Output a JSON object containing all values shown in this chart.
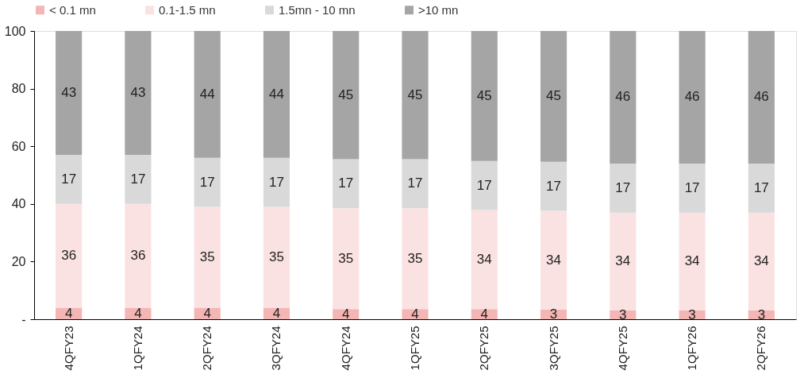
{
  "chart_data": {
    "type": "bar",
    "stacked": true,
    "legend": "top",
    "grid": false,
    "categories": [
      "4QFY23",
      "1QFY24",
      "2QFY24",
      "3QFY24",
      "4QFY24",
      "1QFY25",
      "2QFY25",
      "3QFY25",
      "4QFY25",
      "1QFY26",
      "2QFY26"
    ],
    "ylim": [
      0,
      100
    ],
    "yticks": [
      {
        "value": 0,
        "label": "-"
      },
      20,
      40,
      60,
      80,
      100
    ],
    "series": [
      {
        "name": "< 0.1 mn",
        "color": "#f4b6b4",
        "values": [
          4,
          4,
          4,
          4,
          3.5,
          3.5,
          3.5,
          3.4,
          3,
          3,
          3
        ],
        "value_labels": [
          "4",
          "4",
          "4",
          "4",
          "4",
          "4",
          "4",
          "3",
          "3",
          "3",
          "3"
        ]
      },
      {
        "name": "0.1-1.5 mn",
        "color": "#fbe2e2",
        "values": [
          36,
          36,
          35,
          35,
          35,
          35,
          34.4,
          34.2,
          34,
          34,
          34
        ],
        "value_labels": [
          "36",
          "36",
          "35",
          "35",
          "35",
          "35",
          "34",
          "34",
          "34",
          "34",
          "34"
        ]
      },
      {
        "name": "1.5mn - 10 mn",
        "color": "#d9d9d9",
        "values": [
          17,
          17,
          17,
          17,
          17,
          17,
          17,
          17,
          17,
          17,
          17
        ],
        "value_labels": [
          "17",
          "17",
          "17",
          "17",
          "17",
          "17",
          "17",
          "17",
          "17",
          "17",
          "17"
        ]
      },
      {
        "name": ">10 mn",
        "color": "#a5a5a5",
        "values": [
          43,
          43,
          44,
          44,
          44.5,
          44.5,
          45.1,
          45.4,
          46,
          46,
          46
        ],
        "value_labels": [
          "43",
          "43",
          "44",
          "44",
          "45",
          "45",
          "45",
          "45",
          "46",
          "46",
          "46"
        ]
      }
    ]
  }
}
